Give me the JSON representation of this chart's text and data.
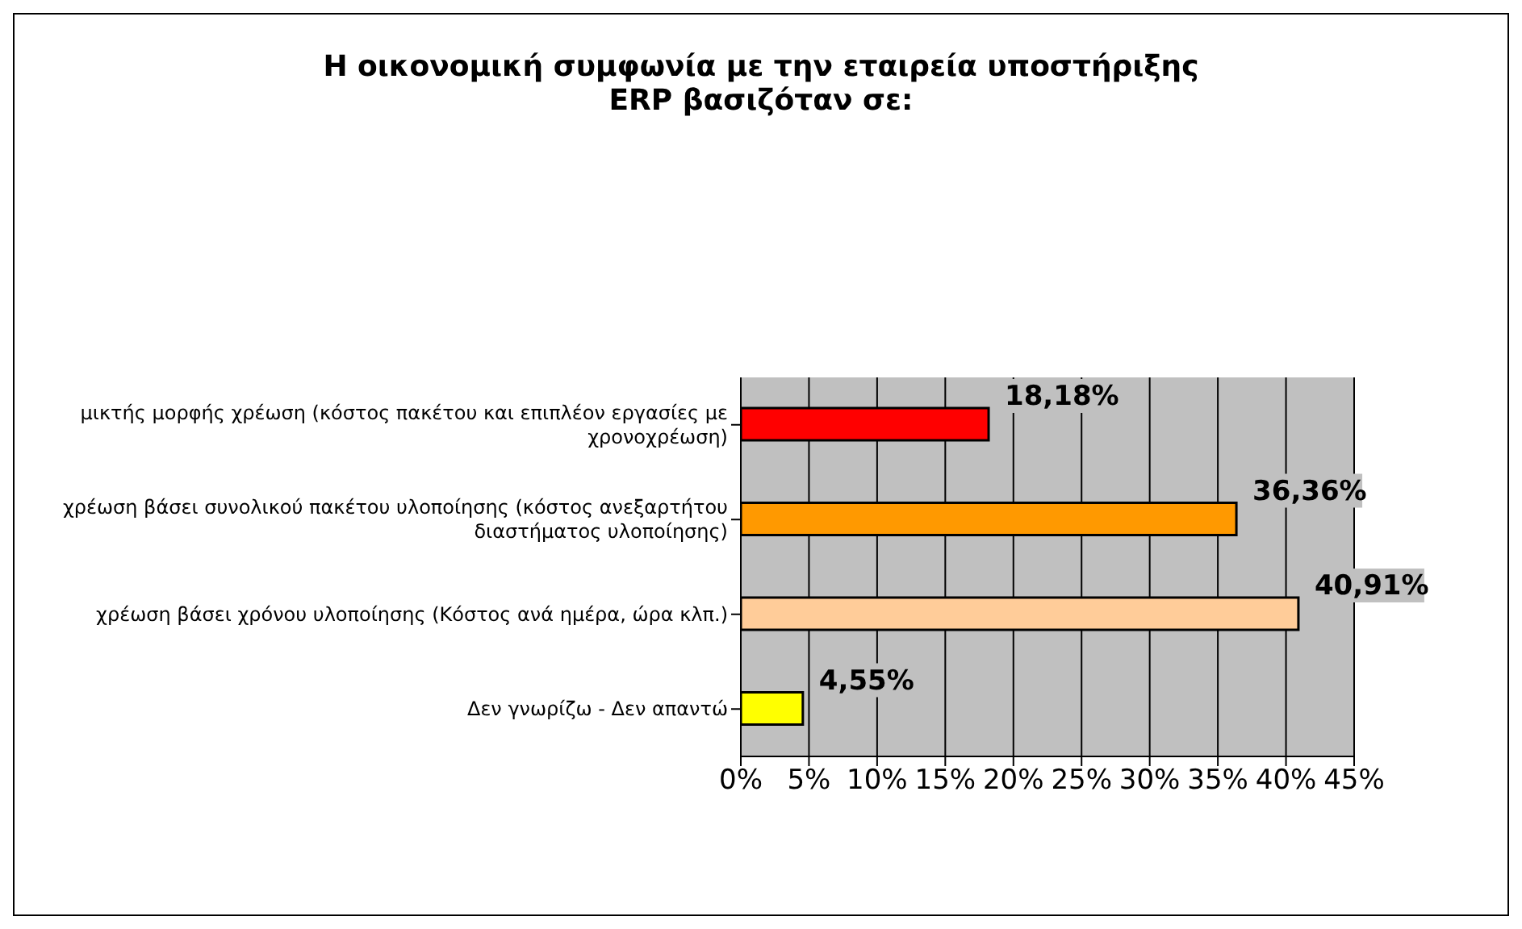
{
  "chart_data": {
    "type": "bar",
    "orientation": "horizontal",
    "title": "Η οικονομική συμφωνία με την εταιρεία υποστήριξης ERP βασιζόταν σε:",
    "categories": [
      "μικτής μορφής χρέωση (κόστος πακέτου και επιπλέον εργασίες με χρονοχρέωση)",
      "χρέωση βάσει συνολικού πακέτου υλοποίησης (κόστος ανεξαρτήτου διαστήματος υλοποίησης)",
      "χρέωση βάσει χρόνου υλοποίησης (Κόστος ανά ημέρα, ώρα κλπ.)",
      "Δεν γνωρίζω - Δεν απαντώ"
    ],
    "values": [
      18.18,
      36.36,
      40.91,
      4.55
    ],
    "colors": [
      "#ff0000",
      "#ff9900",
      "#ffcc99",
      "#ffff00"
    ],
    "value_labels": [
      "18,18%",
      "36,36%",
      "40,91%",
      "4,55%"
    ],
    "xlim": [
      0,
      45
    ],
    "xticks": [
      {
        "value": 0,
        "label": "0%"
      },
      {
        "value": 5,
        "label": "5%"
      },
      {
        "value": 10,
        "label": "10%"
      },
      {
        "value": 15,
        "label": "15%"
      },
      {
        "value": 20,
        "label": "20%"
      },
      {
        "value": 25,
        "label": "25%"
      },
      {
        "value": 30,
        "label": "30%"
      },
      {
        "value": 35,
        "label": "35%"
      },
      {
        "value": 40,
        "label": "40%"
      },
      {
        "value": 45,
        "label": "45%"
      }
    ],
    "grid": "x",
    "legend": false
  }
}
